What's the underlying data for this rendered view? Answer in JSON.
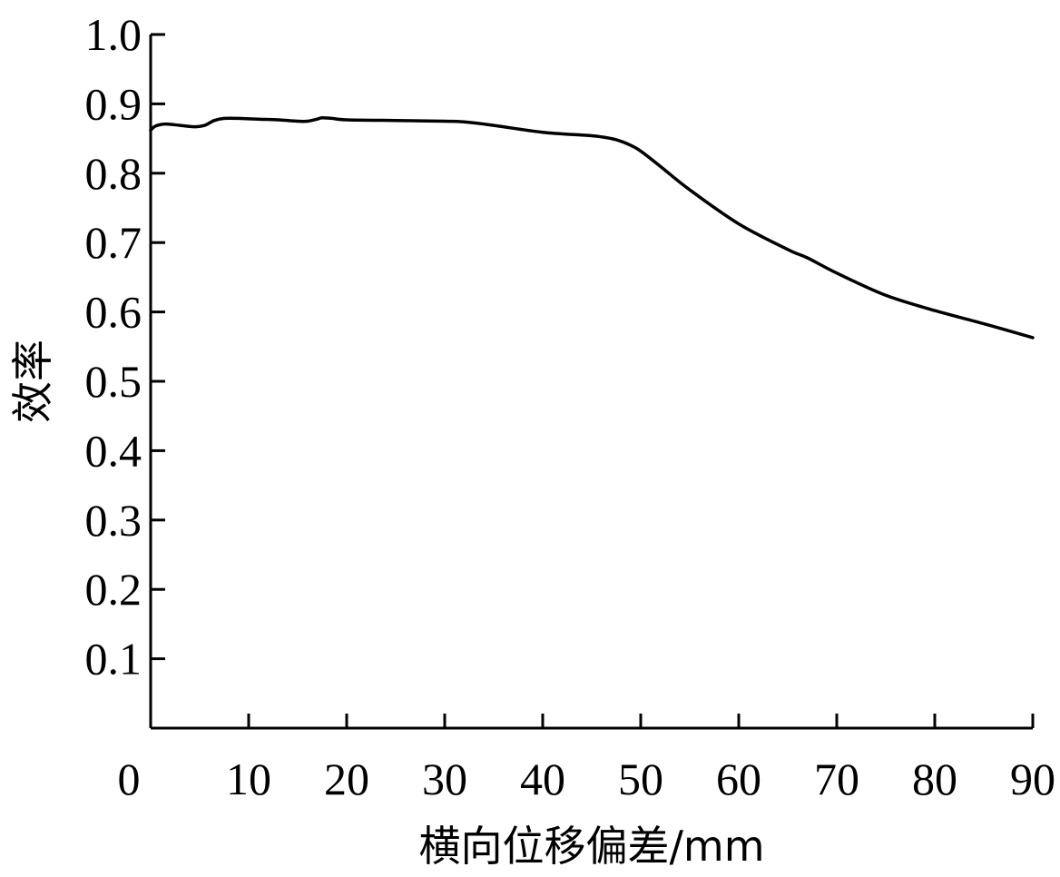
{
  "chart_data": {
    "type": "line",
    "title": "",
    "xlabel": "横向位移偏差/mm",
    "ylabel": "效率",
    "xlim": [
      0,
      90
    ],
    "ylim": [
      0,
      1.0
    ],
    "x_ticks": [
      0,
      10,
      20,
      30,
      40,
      50,
      60,
      70,
      80,
      90
    ],
    "y_ticks": [
      0.1,
      0.2,
      0.3,
      0.4,
      0.5,
      0.6,
      0.7,
      0.8,
      0.9,
      1.0
    ],
    "x_tick_labels": [
      "0",
      "10",
      "20",
      "30",
      "40",
      "50",
      "60",
      "70",
      "80",
      "90"
    ],
    "y_tick_labels": [
      "0.1",
      "0.2",
      "0.3",
      "0.4",
      "0.5",
      "0.6",
      "0.7",
      "0.8",
      "0.9",
      "1.0"
    ],
    "grid": false,
    "series": [
      {
        "x": [
          0,
          0.5,
          1.5,
          3,
          4.5,
          5.5,
          6.5,
          7.5,
          9,
          11,
          13,
          15,
          16,
          17,
          17.5,
          18.5,
          20,
          25,
          30,
          32,
          35,
          40,
          45,
          47,
          48,
          49,
          50,
          52,
          55,
          60,
          65,
          67,
          70,
          75,
          80,
          85,
          90
        ],
        "y": [
          0.862,
          0.868,
          0.871,
          0.869,
          0.867,
          0.869,
          0.876,
          0.879,
          0.879,
          0.878,
          0.877,
          0.875,
          0.875,
          0.878,
          0.88,
          0.879,
          0.877,
          0.876,
          0.875,
          0.874,
          0.869,
          0.859,
          0.854,
          0.85,
          0.846,
          0.84,
          0.832,
          0.81,
          0.776,
          0.727,
          0.69,
          0.678,
          0.656,
          0.624,
          0.602,
          0.583,
          0.563
        ]
      }
    ]
  }
}
